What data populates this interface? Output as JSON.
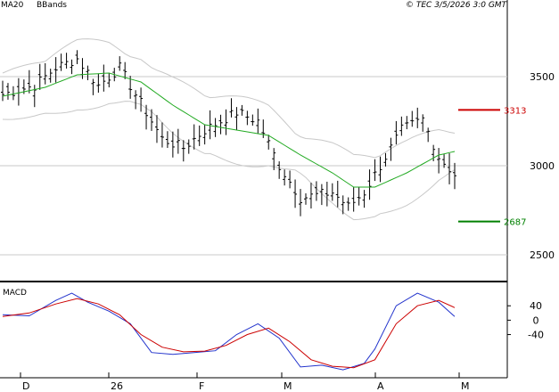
{
  "header": {
    "ma_label": "MA20",
    "bb_label": "BBands",
    "copyright": "© TEC 3/5/2026 3:0 GMT"
  },
  "colors": {
    "ma": "#22aa22",
    "bbands": "#c8c8c8",
    "bars": "#000000",
    "grid": "#c8c8c8",
    "resistance": "#cc0000",
    "support": "#008000",
    "macd": "#2233cc",
    "signal": "#cc0000"
  },
  "chart_data": [
    {
      "type": "ohlc",
      "title": "",
      "yticks": [
        {
          "label": "3500",
          "value": 3500
        },
        {
          "label": "3000",
          "value": 3000
        },
        {
          "label": "2500",
          "value": 2500
        }
      ],
      "ylim": [
        2350,
        3830
      ],
      "xticks": [
        "D",
        "26",
        "F",
        "M",
        "A",
        "M"
      ],
      "levels": [
        {
          "label": "3313",
          "value": 3313,
          "kind": "resistance"
        },
        {
          "label": "2687",
          "value": 2687,
          "kind": "support"
        }
      ],
      "series": [
        {
          "name": "MA20",
          "role": "ma"
        },
        {
          "name": "BBands",
          "role": "bbands"
        }
      ],
      "close_anchors": [
        [
          0,
          3400
        ],
        [
          6,
          3450
        ],
        [
          10,
          3550
        ],
        [
          14,
          3600
        ],
        [
          18,
          3450
        ],
        [
          22,
          3550
        ],
        [
          26,
          3350
        ],
        [
          30,
          3150
        ],
        [
          34,
          3100
        ],
        [
          38,
          3200
        ],
        [
          44,
          3300
        ],
        [
          48,
          3250
        ],
        [
          52,
          3000
        ],
        [
          56,
          2820
        ],
        [
          62,
          2850
        ],
        [
          65,
          2770
        ],
        [
          68,
          2850
        ],
        [
          72,
          3050
        ],
        [
          75,
          3200
        ],
        [
          79,
          3260
        ],
        [
          82,
          3050
        ],
        [
          85,
          2950
        ]
      ],
      "ma_anchors": [
        [
          0,
          3390
        ],
        [
          8,
          3440
        ],
        [
          14,
          3510
        ],
        [
          20,
          3520
        ],
        [
          26,
          3470
        ],
        [
          32,
          3340
        ],
        [
          38,
          3230
        ],
        [
          44,
          3200
        ],
        [
          50,
          3170
        ],
        [
          56,
          3060
        ],
        [
          62,
          2960
        ],
        [
          66,
          2880
        ],
        [
          70,
          2880
        ],
        [
          76,
          2960
        ],
        [
          82,
          3060
        ],
        [
          85,
          3080
        ]
      ]
    },
    {
      "type": "line",
      "title": "MACD",
      "yticks": [
        {
          "label": "40",
          "value": 40
        },
        {
          "label": "0",
          "value": 0
        },
        {
          "label": "-40",
          "value": -40
        }
      ],
      "ylim": [
        -160,
        100
      ],
      "series": [
        {
          "name": "",
          "role": "macd",
          "points": [
            [
              0,
              15
            ],
            [
              5,
              12
            ],
            [
              10,
              55
            ],
            [
              13,
              75
            ],
            [
              16,
              50
            ],
            [
              20,
              25
            ],
            [
              24,
              -10
            ],
            [
              28,
              -90
            ],
            [
              32,
              -95
            ],
            [
              36,
              -90
            ],
            [
              40,
              -85
            ],
            [
              44,
              -40
            ],
            [
              48,
              -10
            ],
            [
              52,
              -50
            ],
            [
              56,
              -130
            ],
            [
              60,
              -125
            ],
            [
              64,
              -138
            ],
            [
              68,
              -120
            ],
            [
              70,
              -80
            ],
            [
              74,
              40
            ],
            [
              78,
              75
            ],
            [
              82,
              50
            ],
            [
              85,
              10
            ]
          ]
        },
        {
          "name": "",
          "role": "signal",
          "points": [
            [
              0,
              10
            ],
            [
              5,
              20
            ],
            [
              10,
              45
            ],
            [
              14,
              60
            ],
            [
              18,
              45
            ],
            [
              22,
              15
            ],
            [
              26,
              -40
            ],
            [
              30,
              -75
            ],
            [
              34,
              -88
            ],
            [
              38,
              -86
            ],
            [
              42,
              -70
            ],
            [
              46,
              -40
            ],
            [
              50,
              -22
            ],
            [
              54,
              -60
            ],
            [
              58,
              -110
            ],
            [
              62,
              -128
            ],
            [
              66,
              -132
            ],
            [
              70,
              -110
            ],
            [
              74,
              -10
            ],
            [
              78,
              40
            ],
            [
              82,
              55
            ],
            [
              85,
              35
            ]
          ]
        }
      ]
    }
  ]
}
